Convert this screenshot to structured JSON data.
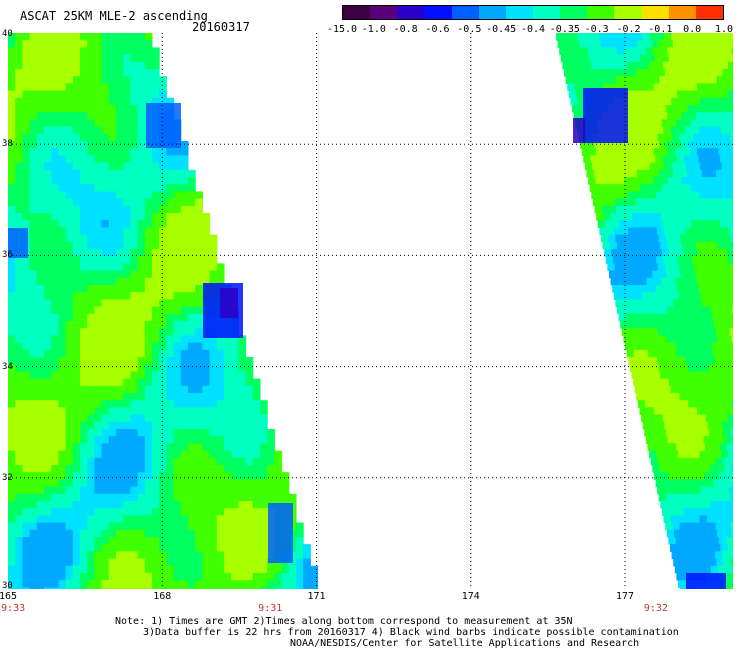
{
  "header": {
    "title": "ASCAT 25KM MLE-2 ascending",
    "date": "20160317"
  },
  "colorbar": {
    "labels": [
      "-15.0",
      "-1.0",
      "-0.8",
      "-0.6",
      "-0.5",
      "-0.45",
      "-0.4",
      "-0.35",
      "-0.3",
      "-0.2",
      "-0.1",
      "0.0",
      "1.0"
    ],
    "colors": [
      "#3a0040",
      "#5a007a",
      "#2b00c8",
      "#0010ff",
      "#0060ff",
      "#00a8ff",
      "#00e0ff",
      "#00ffc0",
      "#00ff60",
      "#40ff00",
      "#a8ff00",
      "#ffe000",
      "#ff9000",
      "#ff3000"
    ]
  },
  "map": {
    "lat_labels": [
      "40",
      "38",
      "36",
      "34",
      "32",
      "30"
    ],
    "lon_labels": [
      "165",
      "168",
      "171",
      "174",
      "177"
    ],
    "lat_range": [
      30,
      40
    ],
    "lon_range": [
      165,
      179.1
    ],
    "grid_lons": [
      168,
      171,
      174,
      177
    ],
    "grid_lats": [
      32,
      34,
      36,
      38
    ]
  },
  "times": [
    {
      "label": "9:33",
      "lon": 165.1
    },
    {
      "label": "9:31",
      "lon": 170.1
    },
    {
      "label": "9:32",
      "lon": 177.6
    }
  ],
  "notes": {
    "line1": "Note: 1) Times are GMT 2)Times along bottom correspond to measurement at 35N",
    "line2": "3)Data buffer is 22 hrs from 20160317 4) Black wind barbs indicate possible contamination",
    "line3": "NOAA/NESDIS/Center for Satellite Applications and Research"
  }
}
